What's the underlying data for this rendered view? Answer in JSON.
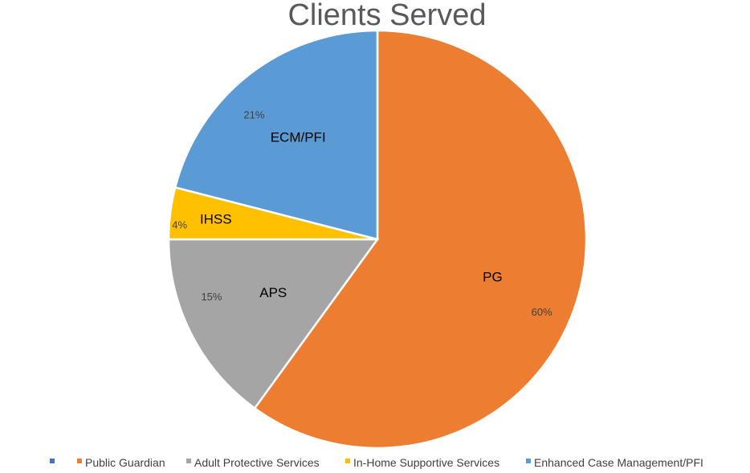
{
  "chart_data": {
    "type": "pie",
    "title": "Clients Served",
    "slices": [
      {
        "category": "PG",
        "label": "60%",
        "value": 60,
        "color": "#ED7D31"
      },
      {
        "category": "APS",
        "label": "15%",
        "value": 15,
        "color": "#A5A5A5"
      },
      {
        "category": "IHSS",
        "label": "4%",
        "value": 4,
        "color": "#FFC000"
      },
      {
        "category": "ECM/PFI",
        "label": "21%",
        "value": 21,
        "color": "#5B9BD5"
      }
    ],
    "legend": {
      "placement": "bottom",
      "entries": [
        {
          "name": "",
          "color": "#4472C4"
        },
        {
          "name": "Public Guardian",
          "color": "#ED7D31"
        },
        {
          "name": "Adult Protective Services",
          "color": "#A5A5A5"
        },
        {
          "name": "In-Home Supportive Services",
          "color": "#FFC000"
        },
        {
          "name": "Enhanced Case Management/PFI",
          "color": "#5B9BD5"
        }
      ]
    }
  }
}
